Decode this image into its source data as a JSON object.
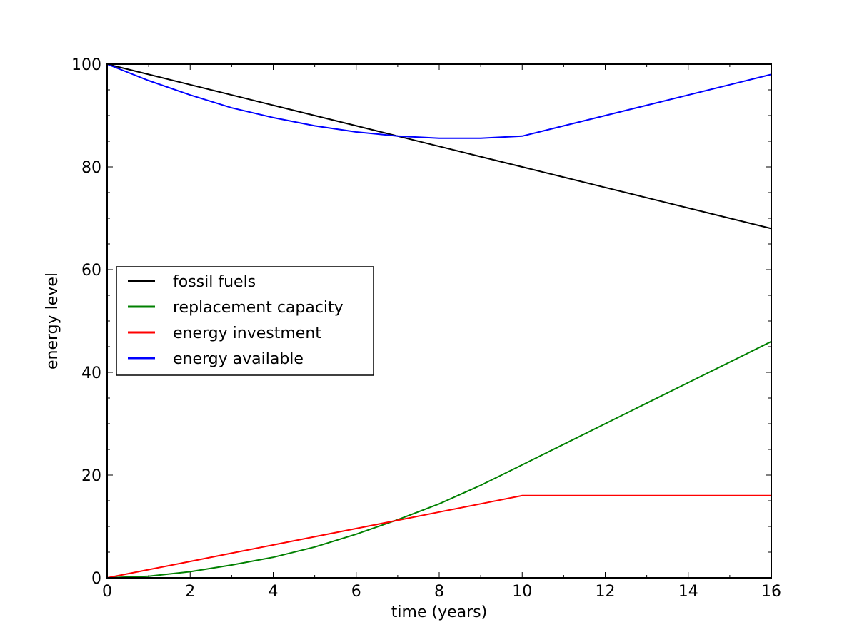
{
  "chart_data": {
    "type": "line",
    "title": "",
    "xlabel": "time (years)",
    "ylabel": "energy level",
    "xlim": [
      0,
      16
    ],
    "ylim": [
      0,
      100
    ],
    "xticks": [
      0,
      2,
      4,
      6,
      8,
      10,
      12,
      14,
      16
    ],
    "yticks": [
      0,
      20,
      40,
      60,
      80,
      100
    ],
    "xtick_labels": [
      "0",
      "2",
      "4",
      "6",
      "8",
      "10",
      "12",
      "14",
      "16"
    ],
    "ytick_labels": [
      "0",
      "20",
      "40",
      "60",
      "80",
      "100"
    ],
    "grid": false,
    "legend_position": "center-left",
    "x": [
      0,
      1,
      2,
      3,
      4,
      5,
      6,
      7,
      8,
      9,
      10,
      11,
      12,
      13,
      14,
      15,
      16
    ],
    "series": [
      {
        "name": "fossil fuels",
        "color": "#000000",
        "values": [
          100,
          98,
          96,
          94,
          92,
          90,
          88,
          86,
          84,
          82,
          80,
          78,
          76,
          74,
          72,
          70,
          68
        ]
      },
      {
        "name": "replacement capacity",
        "color": "#008000",
        "values": [
          0,
          0.3,
          1.2,
          2.5,
          4.0,
          6.0,
          8.5,
          11.3,
          14.4,
          18.0,
          22.0,
          26.0,
          30.0,
          34.0,
          38.0,
          42.0,
          46.0
        ]
      },
      {
        "name": "energy investment",
        "color": "#ff0000",
        "values": [
          0,
          1.6,
          3.2,
          4.8,
          6.4,
          8.0,
          9.6,
          11.2,
          12.8,
          14.4,
          16.0,
          16.0,
          16.0,
          16.0,
          16.0,
          16.0,
          16.0
        ]
      },
      {
        "name": "energy available",
        "color": "#0000ff",
        "values": [
          100,
          96.8,
          94.0,
          91.5,
          89.6,
          88.0,
          86.8,
          86.0,
          85.6,
          85.6,
          86.0,
          88.0,
          90.0,
          92.0,
          94.0,
          96.0,
          98.0
        ]
      }
    ]
  }
}
